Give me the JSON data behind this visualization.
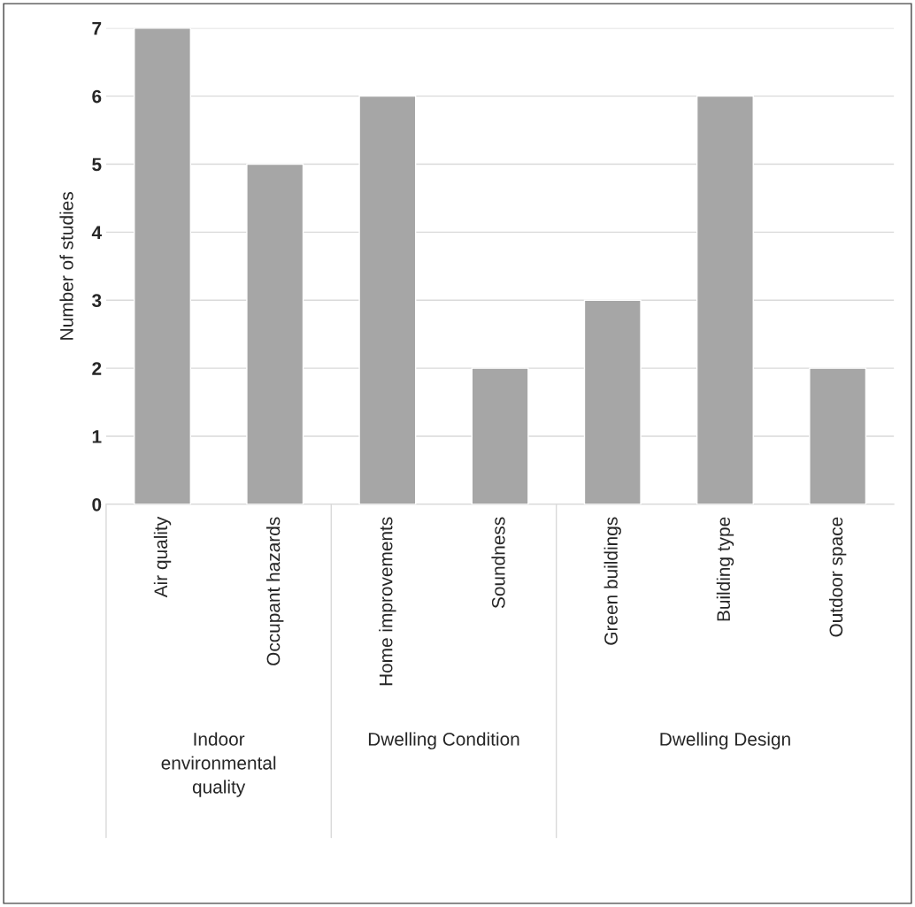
{
  "chart_data": {
    "type": "bar",
    "ylabel": "Number of studies",
    "categories": [
      "Air quality",
      "Occupant hazards",
      "Home improvements",
      "Soundness",
      "Green buildings",
      "Building type",
      "Outdoor space"
    ],
    "values": [
      7,
      5,
      6,
      2,
      3,
      6,
      2
    ],
    "color": "#a6a6a6",
    "ylim": [
      0,
      7
    ],
    "yticks": [
      0,
      1,
      2,
      3,
      4,
      5,
      6,
      7
    ],
    "grid": "y",
    "annotations": [
      "Indoor\nenvironmental\nquality",
      "Dwelling Condition",
      "Dwelling Design"
    ]
  }
}
